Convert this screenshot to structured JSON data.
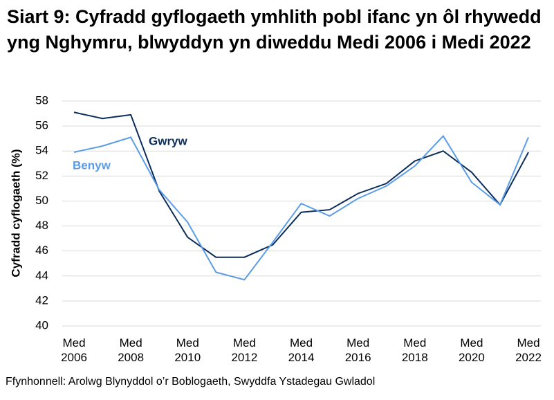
{
  "chart_data": {
    "type": "line",
    "title": "Siart 9: Cyfradd gyflogaeth ymhlith pobl ifanc yn ôl rhywedd yng Nghymru, blwyddyn yn diweddu Medi 2006 i Medi 2022",
    "y_label": "Cyfradd cyflogaeth (%)",
    "source": "Ffynhonnell: Arolwg Blynyddol o’r Boblogaeth, Swyddfa Ystadegau Gwladol",
    "categories": [
      "Med 2006",
      null,
      "Med 2008",
      null,
      "Med 2010",
      null,
      "Med 2012",
      null,
      "Med 2014",
      null,
      "Med 2016",
      null,
      "Med 2018",
      null,
      "Med 2020",
      null,
      "Med 2022"
    ],
    "series": [
      {
        "name": "Gwryw",
        "color": "#0b2d5b",
        "values": [
          57.1,
          56.6,
          56.9,
          50.8,
          47.1,
          45.5,
          45.5,
          46.5,
          49.1,
          49.3,
          50.6,
          51.4,
          53.2,
          54.0,
          52.3,
          49.7,
          53.9
        ]
      },
      {
        "name": "Benyw",
        "color": "#5a9ce8",
        "values": [
          53.9,
          54.4,
          55.1,
          50.9,
          48.3,
          44.3,
          43.7,
          46.7,
          49.8,
          48.8,
          50.2,
          51.2,
          52.8,
          55.2,
          51.5,
          49.7,
          55.1
        ]
      }
    ],
    "ylim": [
      40,
      58
    ],
    "yticks": [
      40,
      42,
      44,
      46,
      48,
      50,
      52,
      54,
      56,
      58
    ],
    "grid": true
  }
}
